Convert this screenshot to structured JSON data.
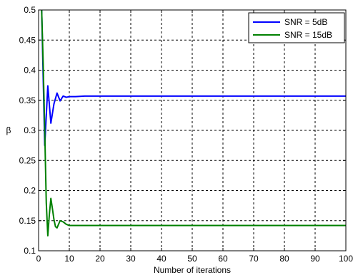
{
  "chart_data": {
    "type": "line",
    "xlabel": "Number of iterations",
    "ylabel": "β",
    "xlim": [
      0,
      100
    ],
    "ylim": [
      0.1,
      0.5
    ],
    "x_ticks": [
      0,
      10,
      20,
      30,
      40,
      50,
      60,
      70,
      80,
      90,
      100
    ],
    "y_ticks": [
      0.1,
      0.15,
      0.2,
      0.25,
      0.3,
      0.35,
      0.4,
      0.45,
      0.5
    ],
    "y_tick_labels": [
      "0.1",
      "0.15",
      "0.2",
      "0.25",
      "0.3",
      "0.35",
      "0.4",
      "0.45",
      "0.5"
    ],
    "grid": true,
    "grid_style": "dashed",
    "legend_position": "top-right",
    "series": [
      {
        "name": "SNR = 5dB",
        "color": "#0000ff",
        "x": [
          1,
          2,
          3,
          4,
          5,
          6,
          7,
          8,
          9,
          10,
          12,
          15,
          20,
          30,
          40,
          50,
          60,
          70,
          80,
          90,
          100
        ],
        "y": [
          0.5,
          0.275,
          0.374,
          0.312,
          0.344,
          0.362,
          0.349,
          0.357,
          0.355,
          0.356,
          0.356,
          0.357,
          0.357,
          0.357,
          0.357,
          0.357,
          0.357,
          0.357,
          0.357,
          0.357,
          0.357
        ]
      },
      {
        "name": "SNR = 15dB",
        "color": "#008000",
        "x": [
          1,
          1.5,
          2,
          2.5,
          3,
          3.5,
          4,
          4.5,
          5,
          5.5,
          6,
          7,
          8,
          9,
          10,
          12,
          15,
          20,
          30,
          40,
          50,
          60,
          70,
          80,
          90,
          100
        ],
        "y": [
          0.5,
          0.41,
          0.3,
          0.18,
          0.125,
          0.16,
          0.187,
          0.17,
          0.152,
          0.14,
          0.138,
          0.15,
          0.148,
          0.144,
          0.142,
          0.142,
          0.142,
          0.142,
          0.142,
          0.142,
          0.142,
          0.142,
          0.142,
          0.142,
          0.142,
          0.142
        ]
      }
    ]
  }
}
